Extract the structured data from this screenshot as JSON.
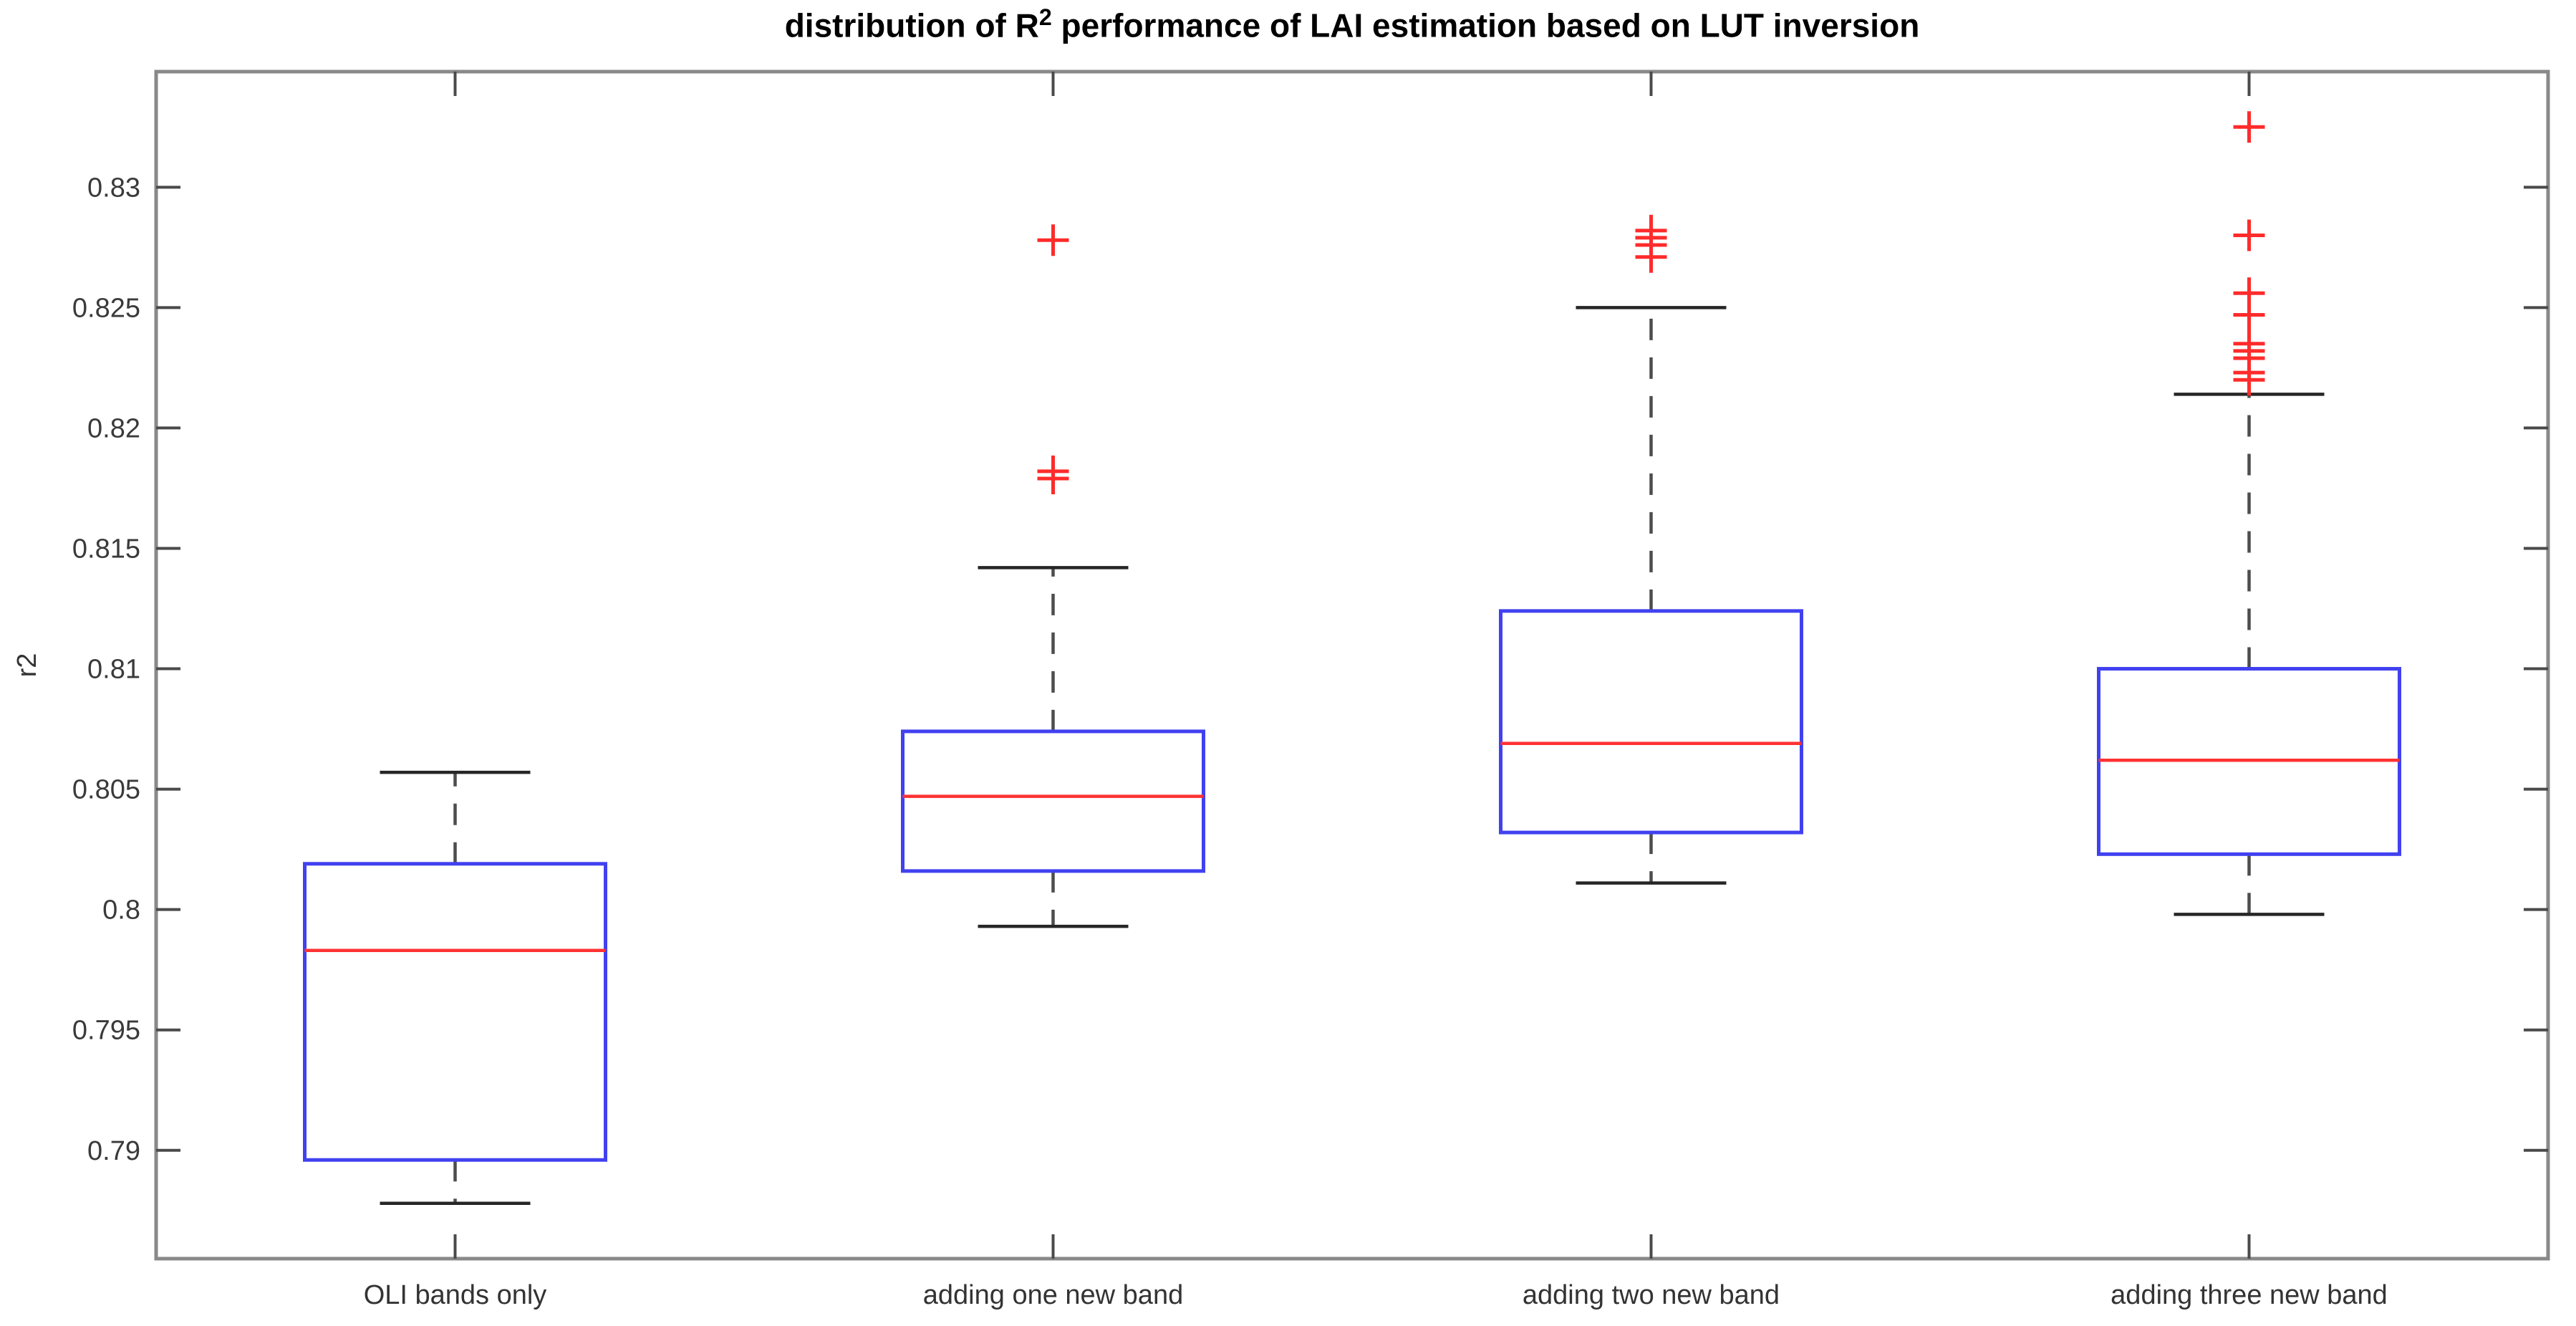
{
  "header": {
    "title_prefix": "distribution of R",
    "title_superscript": "2",
    "title_suffix": " performance of LAI estimation based on LUT inversion"
  },
  "chart_data": {
    "type": "boxplot",
    "title": "distribution of R^2 performance of LAI estimation based on LUT inversion",
    "ylabel": "r2",
    "xlabel": "",
    "grid": false,
    "legend": "none",
    "categories": [
      "OLI bands only",
      "adding one new band",
      "adding two new band",
      "adding three new band"
    ],
    "ylim": [
      0.7855,
      0.8348
    ],
    "yticks": [
      {
        "value": 0.79,
        "label": "0.79"
      },
      {
        "value": 0.795,
        "label": "0.795"
      },
      {
        "value": 0.8,
        "label": "0.8"
      },
      {
        "value": 0.805,
        "label": "0.805"
      },
      {
        "value": 0.81,
        "label": "0.81"
      },
      {
        "value": 0.815,
        "label": "0.815"
      },
      {
        "value": 0.82,
        "label": "0.82"
      },
      {
        "value": 0.825,
        "label": "0.825"
      },
      {
        "value": 0.83,
        "label": "0.83"
      }
    ],
    "boxes": [
      {
        "category": "OLI bands only",
        "whisker_low": 0.7878,
        "q1": 0.7896,
        "median": 0.7983,
        "q3": 0.8019,
        "whisker_high": 0.8057,
        "outliers": []
      },
      {
        "category": "adding one new band",
        "whisker_low": 0.7993,
        "q1": 0.8016,
        "median": 0.8047,
        "q3": 0.8074,
        "whisker_high": 0.8142,
        "outliers": [
          0.8179,
          0.8182,
          0.8278
        ]
      },
      {
        "category": "adding two new band",
        "whisker_low": 0.8011,
        "q1": 0.8032,
        "median": 0.8069,
        "q3": 0.8124,
        "whisker_high": 0.825,
        "outliers": [
          0.8271,
          0.8276,
          0.8279,
          0.8282
        ]
      },
      {
        "category": "adding three new band",
        "whisker_low": 0.7998,
        "q1": 0.8023,
        "median": 0.8062,
        "q3": 0.81,
        "whisker_high": 0.8214,
        "outliers": [
          0.822,
          0.8223,
          0.8229,
          0.8232,
          0.8235,
          0.8247,
          0.8256,
          0.828,
          0.8325
        ]
      }
    ],
    "colors": {
      "box": "#4141f0",
      "median": "#ff3232",
      "whisker": "#4d4d4d",
      "cap": "#262626",
      "outlier": "#ff2b2b",
      "axis_frame": "#898989",
      "tick": "#4a4a4a",
      "tick_label": "#3a3a3a",
      "title": "#000000",
      "background": "#ffffff"
    }
  }
}
